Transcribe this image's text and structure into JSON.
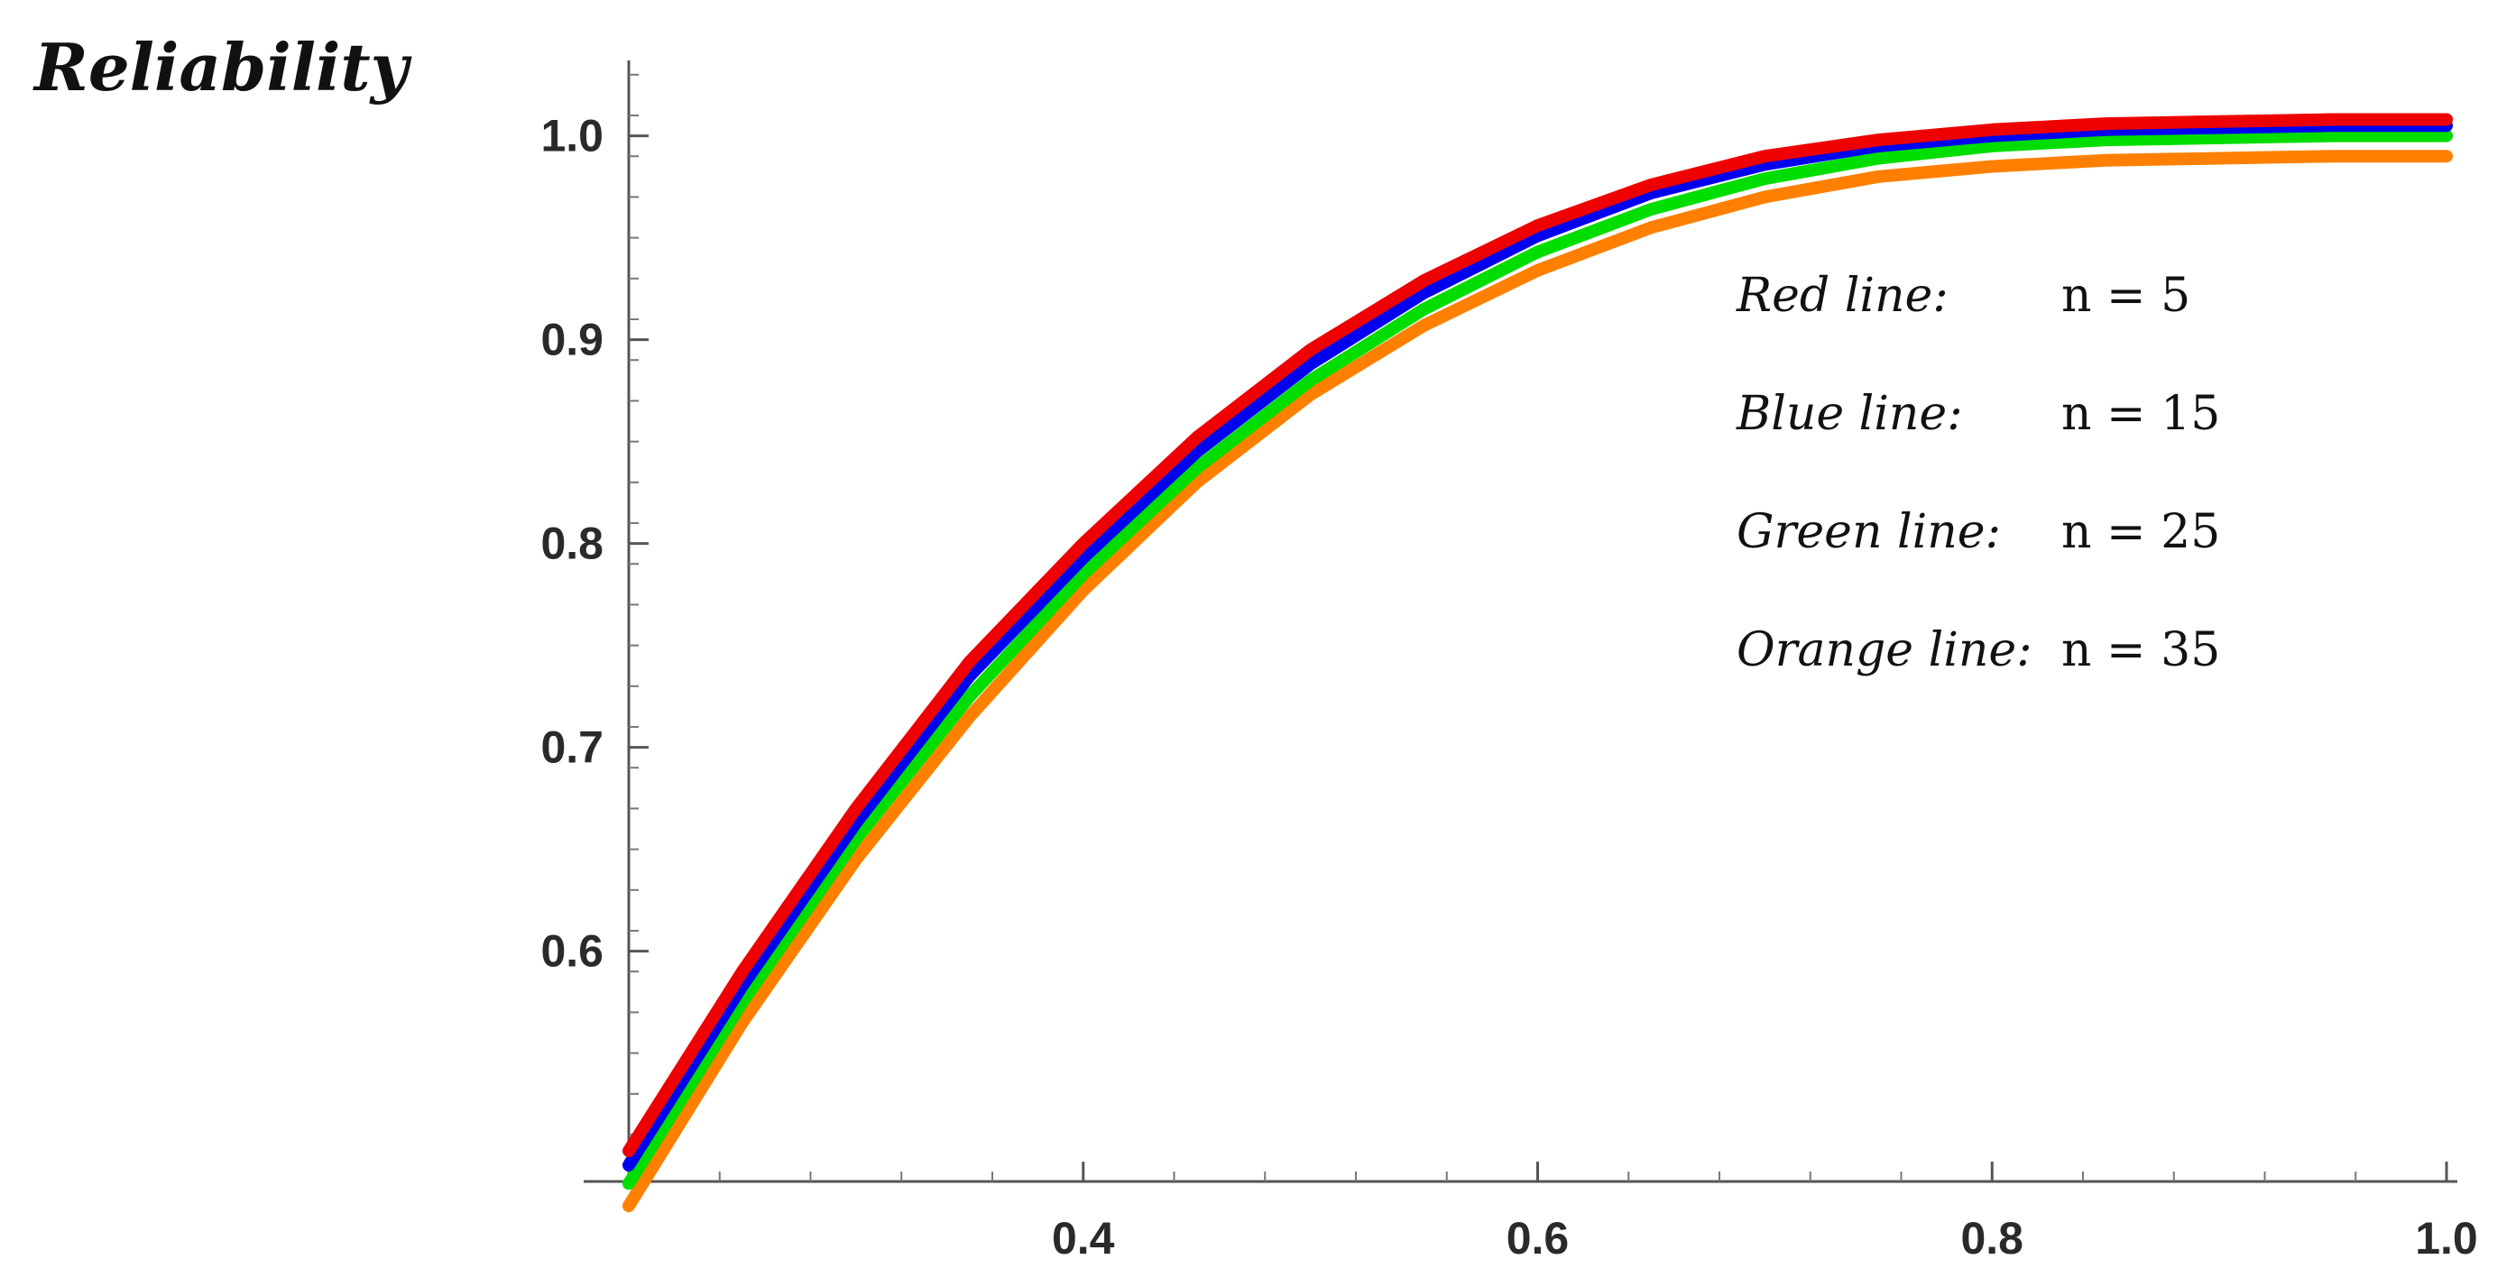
{
  "chart_data": {
    "type": "line",
    "title": "",
    "xlabel": "",
    "ylabel": "Reliability",
    "xlim": [
      0.2,
      1.0
    ],
    "ylim": [
      0.487,
      1.037
    ],
    "x_ticks": [
      "0.4",
      "0.6",
      "0.8",
      "1.0"
    ],
    "y_ticks": [
      "0.6",
      "0.7",
      "0.8",
      "0.9",
      "1.0"
    ],
    "grid": false,
    "legend_position": "top-right",
    "x": [
      0.2,
      0.25,
      0.3,
      0.35,
      0.4,
      0.45,
      0.5,
      0.55,
      0.6,
      0.65,
      0.7,
      0.75,
      0.8,
      0.85,
      0.9,
      0.95,
      1.0
    ],
    "series": [
      {
        "name": "Red line",
        "n_label": "n = 5",
        "color": "#ee0000",
        "values": [
          0.502,
          0.59,
          0.67,
          0.742,
          0.8,
          0.852,
          0.895,
          0.929,
          0.956,
          0.976,
          0.99,
          0.998,
          1.003,
          1.006,
          1.007,
          1.008,
          1.008
        ]
      },
      {
        "name": "Blue line",
        "n_label": "n = 15",
        "color": "#0000ee",
        "values": [
          0.495,
          0.583,
          0.663,
          0.735,
          0.793,
          0.845,
          0.888,
          0.923,
          0.951,
          0.972,
          0.986,
          0.995,
          1.0,
          1.003,
          1.004,
          1.005,
          1.005
        ]
      },
      {
        "name": "Green line",
        "n_label": "n = 25",
        "color": "#00dd00",
        "values": [
          0.486,
          0.575,
          0.655,
          0.725,
          0.785,
          0.837,
          0.88,
          0.915,
          0.943,
          0.964,
          0.979,
          0.989,
          0.995,
          0.998,
          0.999,
          1.0,
          1.0
        ]
      },
      {
        "name": "Orange line",
        "n_label": "n = 35",
        "color": "#ff8000",
        "values": [
          0.475,
          0.565,
          0.645,
          0.715,
          0.777,
          0.83,
          0.873,
          0.907,
          0.934,
          0.955,
          0.97,
          0.98,
          0.985,
          0.988,
          0.989,
          0.99,
          0.99
        ]
      }
    ]
  }
}
